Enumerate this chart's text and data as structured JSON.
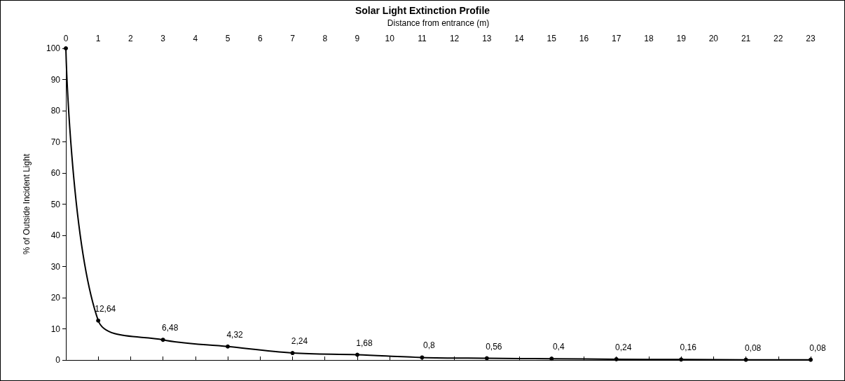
{
  "chart_data": {
    "type": "line",
    "title": "Solar Light Extinction Profile",
    "xlabel": "Distance from entrance (m)",
    "ylabel": "% of Outside Incident Light",
    "x": [
      0,
      1,
      3,
      5,
      7,
      9,
      11,
      13,
      15,
      17,
      19,
      21,
      23
    ],
    "series": [
      {
        "color": "#000000",
        "values": [
          100,
          12.64,
          6.48,
          4.32,
          2.24,
          1.68,
          0.8,
          0.56,
          0.4,
          0.24,
          0.16,
          0.08,
          0.08
        ],
        "value_labels": [
          null,
          "12,64",
          "6,48",
          "4,32",
          "2,24",
          "1,68",
          "0,8",
          "0,56",
          "0,4",
          "0,24",
          "0,16",
          "0,08",
          "0,08"
        ]
      }
    ],
    "xlim": [
      0,
      23
    ],
    "xticks": [
      0,
      1,
      2,
      3,
      4,
      5,
      6,
      7,
      8,
      9,
      10,
      11,
      12,
      13,
      14,
      15,
      16,
      17,
      18,
      19,
      20,
      21,
      22,
      23
    ],
    "ylim": [
      0,
      100
    ],
    "yticks": [
      0,
      10,
      20,
      30,
      40,
      50,
      60,
      70,
      80,
      90,
      100
    ],
    "grid": false,
    "marker": "circle",
    "line_style": "solid"
  }
}
